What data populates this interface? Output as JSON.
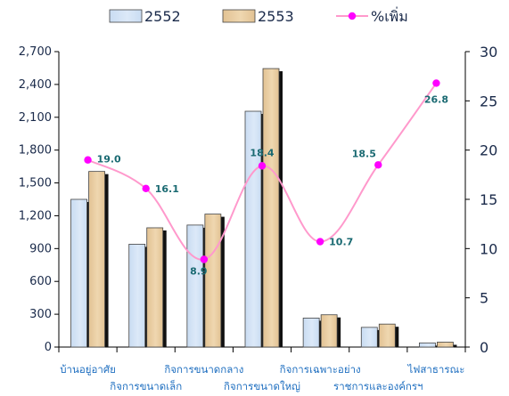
{
  "chart_data": {
    "type": "bar",
    "categories": [
      [
        "บ้านอยู่อาศัย",
        ""
      ],
      [
        "",
        "กิจการขนาดเล็ก"
      ],
      [
        "กิจการขนาดกลาง",
        ""
      ],
      [
        "",
        "กิจการขนาดใหญ่"
      ],
      [
        "กิจการเฉพาะอย่าง",
        ""
      ],
      [
        "",
        "ราชการและองค์กรฯ"
      ],
      [
        "ไฟสาธารณะ",
        ""
      ]
    ],
    "series": [
      {
        "name": "2552",
        "type": "bar",
        "values": [
          1350,
          940,
          1115,
          2155,
          265,
          180,
          38
        ],
        "color": "#dce9f8"
      },
      {
        "name": "2553",
        "type": "bar",
        "values": [
          1605,
          1090,
          1215,
          2545,
          295,
          210,
          45
        ],
        "color": "#efd7b0"
      },
      {
        "name": "%เพิ่ม",
        "type": "line",
        "axis": "right",
        "values": [
          19.0,
          16.1,
          8.9,
          18.4,
          10.7,
          18.5,
          26.8
        ],
        "color": "#ff99cc",
        "marker_color": "#ff00ff"
      }
    ],
    "data_labels": [
      "19.0",
      "16.1",
      "8.9",
      "18.4",
      "10.7",
      "18.5",
      "26.8"
    ],
    "y_left": {
      "ticks": [
        "0",
        "300",
        "600",
        "900",
        "1,200",
        "1,500",
        "1,800",
        "2,100",
        "2,400",
        "2,700"
      ],
      "min": 0,
      "max": 2700
    },
    "y_right": {
      "ticks": [
        "0",
        "5",
        "10",
        "15",
        "20",
        "25",
        "30"
      ],
      "min": 0,
      "max": 30
    },
    "legend": {
      "position": "top"
    }
  }
}
